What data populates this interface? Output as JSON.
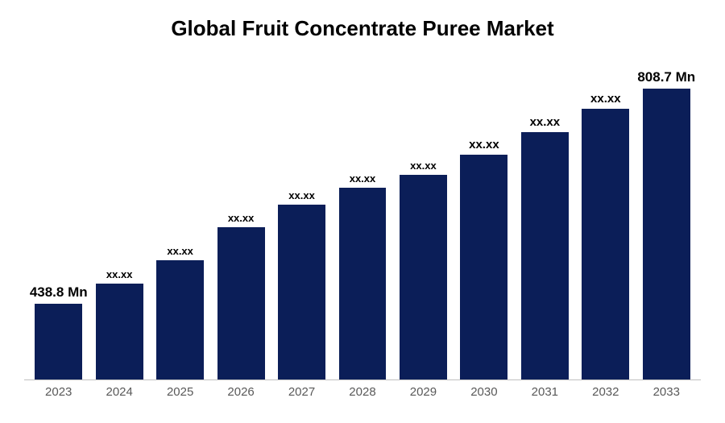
{
  "chart": {
    "type": "bar",
    "title": "Global Fruit Concentrate Puree Market",
    "title_fontsize": 26,
    "title_fontweight": 700,
    "title_color": "#000000",
    "background_color": "#ffffff",
    "bar_color": "#0b1e58",
    "bar_width_pct": 78,
    "axis_line_color": "#bfbfbf",
    "x_tick_color": "#595959",
    "x_tick_fontsize": 15,
    "label_color": "#000000",
    "label_fontweight": 700,
    "categories": [
      "2023",
      "2024",
      "2025",
      "2026",
      "2027",
      "2028",
      "2029",
      "2030",
      "2031",
      "2032",
      "2033"
    ],
    "values_label": [
      "438.8 Mn",
      "xx.xx",
      "xx.xx",
      "xx.xx",
      "xx.xx",
      "xx.xx",
      "xx.xx",
      "xx.xx",
      "xx.xx",
      "xx.xx",
      "808.7 Mn"
    ],
    "label_fontsize": [
      17,
      13,
      13,
      13,
      13,
      13,
      13,
      15,
      15,
      15,
      17
    ],
    "bar_heights_pct": [
      23,
      29,
      36,
      46,
      53,
      58,
      62,
      68,
      75,
      82,
      88
    ],
    "ylim": [
      0,
      100
    ]
  }
}
